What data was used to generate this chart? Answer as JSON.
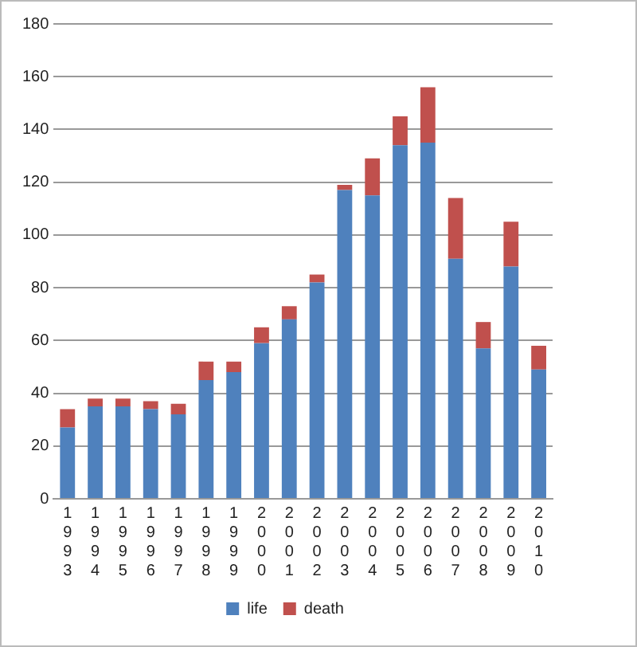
{
  "chart_data": {
    "type": "bar",
    "stacked": true,
    "categories": [
      "1993",
      "1994",
      "1995",
      "1996",
      "1997",
      "1998",
      "1999",
      "2000",
      "2001",
      "2002",
      "2003",
      "2004",
      "2005",
      "2006",
      "2007",
      "2008",
      "2009",
      "2010"
    ],
    "series": [
      {
        "name": "life",
        "color": "#4f81bd",
        "values": [
          27,
          35,
          35,
          34,
          32,
          45,
          48,
          59,
          68,
          82,
          117,
          115,
          134,
          135,
          91,
          57,
          88,
          49
        ]
      },
      {
        "name": "death",
        "color": "#c0504d",
        "values": [
          7,
          3,
          3,
          3,
          4,
          7,
          4,
          6,
          5,
          3,
          2,
          14,
          11,
          21,
          23,
          10,
          17,
          9
        ]
      }
    ],
    "ylim": [
      0,
      180
    ],
    "yticks": [
      0,
      20,
      40,
      60,
      80,
      100,
      120,
      140,
      160,
      180
    ],
    "grid": "y",
    "legend": "bottom"
  }
}
